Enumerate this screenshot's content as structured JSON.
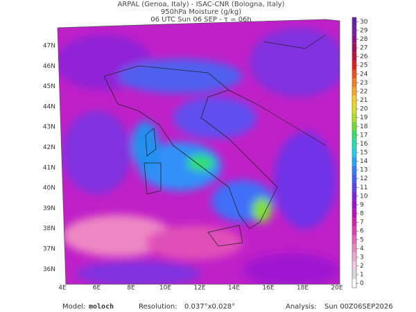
{
  "header": {
    "line1": "ARPAL (Genoa, Italy)  -  ISAC-CNR (Bologna, Italy)",
    "line2": "950hPa Moisture (g/kg)",
    "line3": "06 UTC Sun 06 SEP  -  τ = 06h"
  },
  "map": {
    "lat_labels": [
      "47N",
      "46N",
      "45N",
      "44N",
      "43N",
      "42N",
      "41N",
      "40N",
      "39N",
      "38N",
      "37N",
      "36N"
    ],
    "lon_labels": [
      "4E",
      "6E",
      "8E",
      "10E",
      "12E",
      "14E",
      "16E",
      "18E",
      "20E"
    ]
  },
  "colorbar": {
    "ticks": [
      0,
      1,
      2,
      3,
      4,
      5,
      6,
      7,
      8,
      9,
      10,
      11,
      12,
      13,
      14,
      15,
      16,
      17,
      18,
      19,
      20,
      21,
      22,
      23,
      24,
      25,
      26,
      27,
      28,
      29,
      30
    ],
    "colors": [
      "#ffffff",
      "#d8d8d8",
      "#f2c8e0",
      "#f0a8d0",
      "#ee88c4",
      "#e868bc",
      "#e040b4",
      "#d820b0",
      "#c010c0",
      "#a010d0",
      "#8020e0",
      "#6040f0",
      "#4060f8",
      "#3080f8",
      "#20a8f8",
      "#20d0e8",
      "#20e0b0",
      "#30e070",
      "#70e030",
      "#b0e020",
      "#e0e020",
      "#f8d020",
      "#f8a820",
      "#f88020",
      "#f05020",
      "#e02020",
      "#c01040",
      "#a01060",
      "#8c1088",
      "#7820a0",
      "#6020b0"
    ]
  },
  "footer": {
    "model_label": "Model:",
    "model": "moloch",
    "res_label": "Resolution:",
    "res": "0.037°x0.028°",
    "analysis_label": "Analysis:",
    "analysis": "Sun 00Z06SEP2026"
  }
}
